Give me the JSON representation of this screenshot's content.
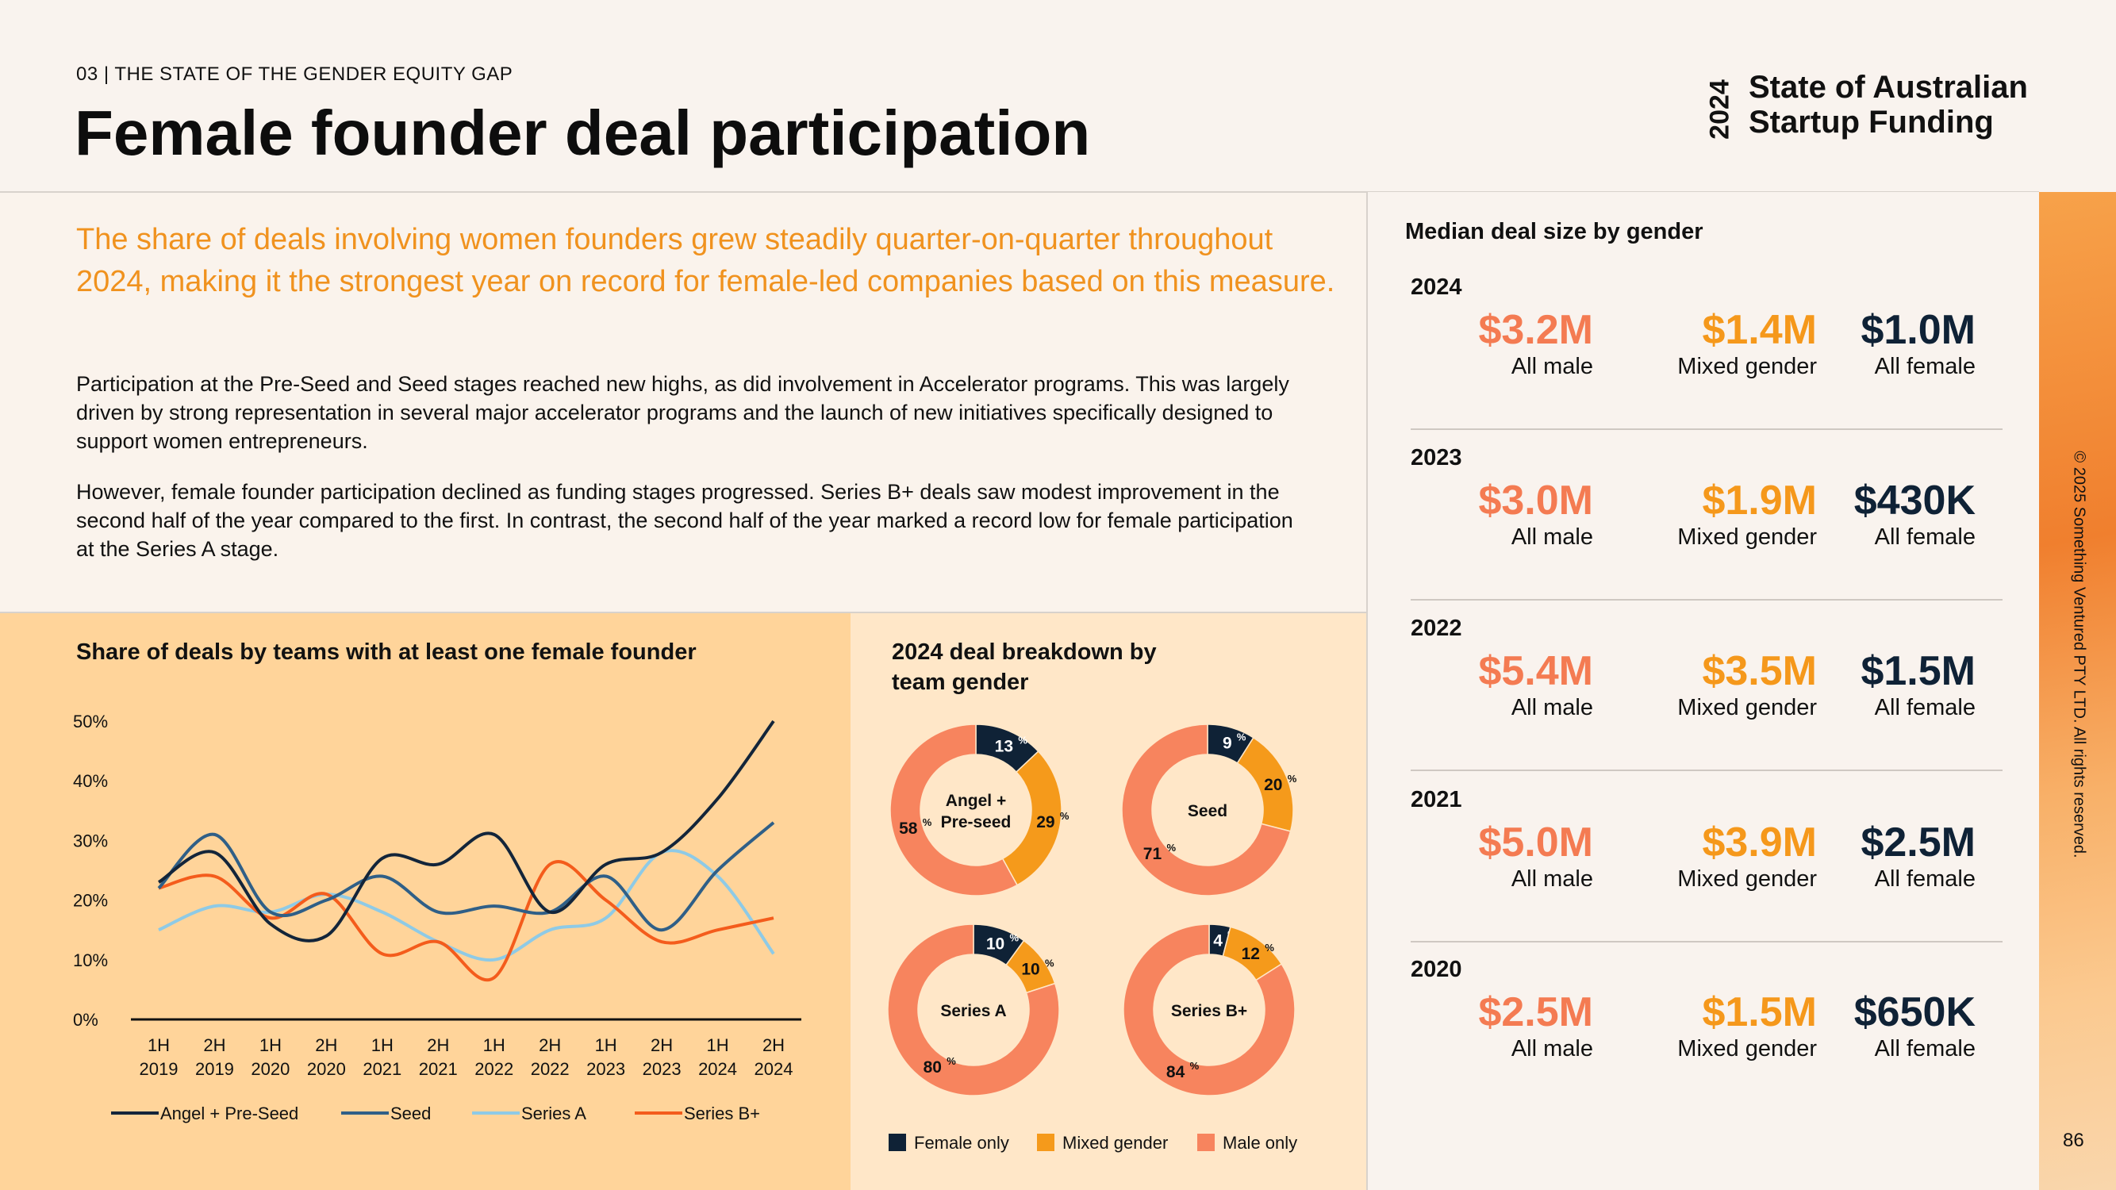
{
  "header": {
    "eyebrow": "03  |  THE STATE OF THE GENDER EQUITY GAP",
    "title": "Female founder deal participation",
    "brand_year": "2024",
    "brand_line1": "State of Australian",
    "brand_line2": "Startup Funding"
  },
  "intro": {
    "lead": "The share of deals involving women founders grew steadily quarter-on-quarter throughout 2024, making it the strongest year on record for female-led companies based on this measure.",
    "para1": "Participation at the Pre-Seed and Seed stages reached new highs, as did involvement in Accelerator programs. This was largely driven by strong representation in several major accelerator programs and the launch of new initiatives specifically designed to support women entrepreneurs.",
    "para2": "However, female founder participation declined as funding stages progressed. Series B+ deals saw modest improvement in the second half of the year compared to the first. In contrast, the second half of the year marked a record low for female participation at the Series A stage."
  },
  "line_chart_title": "Share of deals by teams with at least one female founder",
  "donut_title_1": "2024 deal breakdown by",
  "donut_title_2": "team gender",
  "right_panel_title": "Median deal size by gender",
  "colors": {
    "angel": "#13253a",
    "seed": "#2f5f87",
    "seriesA": "#8ecae6",
    "seriesB": "#f45c1c",
    "female_only": "#0f2236",
    "mixed": "#f59a1b",
    "male_only": "#f7845e",
    "male_value": "#f47b52",
    "mixed_value": "#f5981b",
    "female_value": "#0f2236"
  },
  "chart_data": [
    {
      "type": "line",
      "title": "Share of deals by teams with at least one female founder",
      "x": [
        "1H 2019",
        "2H 2019",
        "1H 2020",
        "2H 2020",
        "1H 2021",
        "2H 2021",
        "1H 2022",
        "2H 2022",
        "1H 2023",
        "2H 2023",
        "1H 2024",
        "2H 2024"
      ],
      "x_tick_line1": [
        "1H",
        "2H",
        "1H",
        "2H",
        "1H",
        "2H",
        "1H",
        "2H",
        "1H",
        "2H",
        "1H",
        "2H"
      ],
      "x_tick_line2": [
        "2019",
        "2019",
        "2020",
        "2020",
        "2021",
        "2021",
        "2022",
        "2022",
        "2023",
        "2023",
        "2024",
        "2024"
      ],
      "y_ticks": [
        "0%",
        "10%",
        "20%",
        "30%",
        "40%",
        "50%"
      ],
      "ylim": [
        0,
        50
      ],
      "series": [
        {
          "name": "Angel + Pre-Seed",
          "values": [
            23,
            28,
            16,
            14,
            27,
            26,
            31,
            18,
            26,
            28,
            37,
            50
          ]
        },
        {
          "name": "Seed",
          "values": [
            22,
            31,
            18,
            20,
            24,
            18,
            19,
            18,
            24,
            15,
            25,
            33
          ]
        },
        {
          "name": "Series A",
          "values": [
            15,
            19,
            18,
            21,
            18,
            13,
            10,
            15,
            17,
            28,
            24,
            11
          ]
        },
        {
          "name": "Series B+",
          "values": [
            22,
            24,
            17,
            21,
            11,
            13,
            7,
            26,
            20,
            13,
            15,
            17
          ]
        }
      ],
      "legend": "bottom"
    },
    {
      "type": "pie",
      "title": "2024 deal breakdown by team gender",
      "legend": [
        "Female only",
        "Mixed gender",
        "Male only"
      ],
      "donuts": [
        {
          "label": "Angel + Pre-seed",
          "label_line1": "Angel +",
          "label_line2": "Pre-seed",
          "values": [
            13,
            29,
            58
          ],
          "labels": [
            "13",
            "29",
            "58"
          ]
        },
        {
          "label": "Seed",
          "label_line1": "Seed",
          "label_line2": "",
          "values": [
            9,
            20,
            71
          ],
          "labels": [
            "9",
            "20",
            "71"
          ]
        },
        {
          "label": "Series A",
          "label_line1": "Series A",
          "label_line2": "",
          "values": [
            10,
            10,
            80
          ],
          "labels": [
            "10",
            "10",
            "80"
          ]
        },
        {
          "label": "Series B+",
          "label_line1": "Series B+",
          "label_line2": "",
          "values": [
            4,
            12,
            84
          ],
          "labels": [
            "4",
            "12",
            "84"
          ]
        }
      ],
      "percent_sign": "%"
    }
  ],
  "median_deal_size": [
    {
      "year": "2024",
      "male": "$3.2M",
      "mixed": "$1.4M",
      "female": "$1.0M"
    },
    {
      "year": "2023",
      "male": "$3.0M",
      "mixed": "$1.9M",
      "female": "$430K"
    },
    {
      "year": "2022",
      "male": "$5.4M",
      "mixed": "$3.5M",
      "female": "$1.5M"
    },
    {
      "year": "2021",
      "male": "$5.0M",
      "mixed": "$3.9M",
      "female": "$2.5M"
    },
    {
      "year": "2020",
      "male": "$2.5M",
      "mixed": "$1.5M",
      "female": "$650K"
    }
  ],
  "captions": {
    "male": "All male",
    "mixed": "Mixed gender",
    "female": "All female"
  },
  "footer": {
    "copyright": "© 2025 Something Ventured PTY LTD. All rights reserved.",
    "page": "86"
  }
}
